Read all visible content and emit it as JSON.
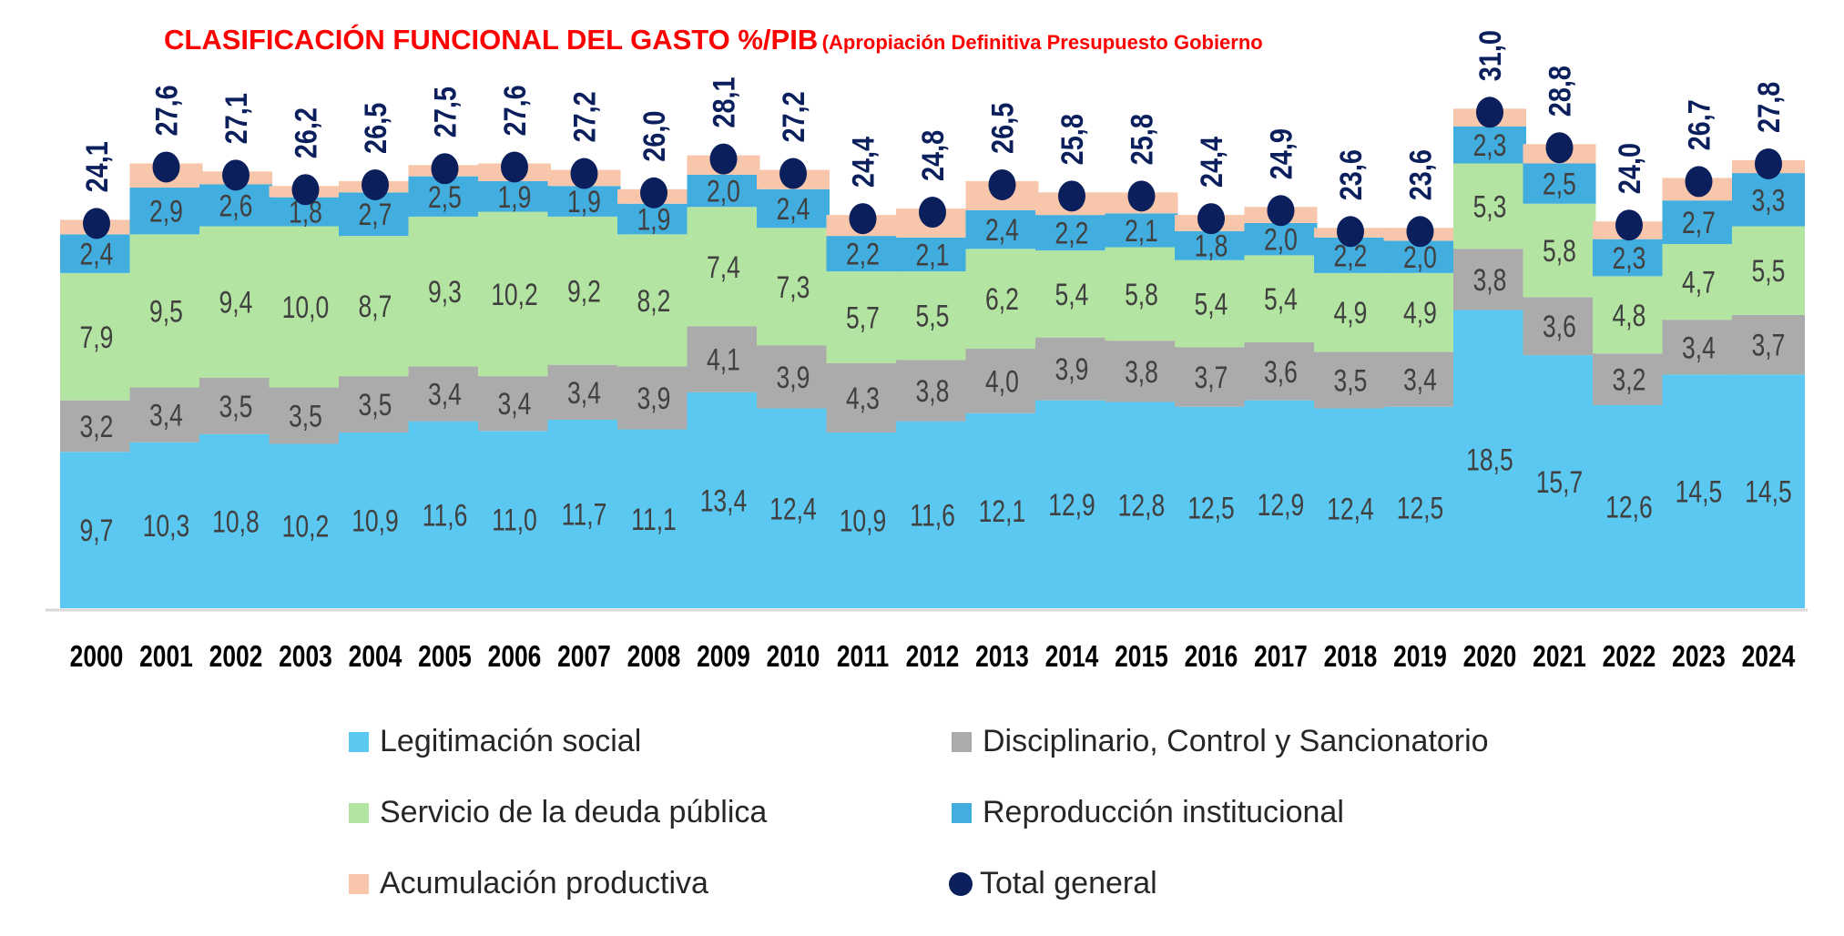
{
  "chart_data": {
    "type": "bar",
    "stacked": true,
    "title": "CLASIFICACIÓN FUNCIONAL DEL GASTO %/PIB",
    "subtitle": "(Apropiación Definitiva Presupuesto Gobierno",
    "categories": [
      "2000",
      "2001",
      "2002",
      "2003",
      "2004",
      "2005",
      "2006",
      "2007",
      "2008",
      "2009",
      "2010",
      "2011",
      "2012",
      "2013",
      "2014",
      "2015",
      "2016",
      "2017",
      "2018",
      "2019",
      "2020",
      "2021",
      "2022",
      "2023",
      "2024"
    ],
    "series": [
      {
        "name": "Legitimación social",
        "color": "#5BC8F1",
        "values": [
          9.7,
          10.3,
          10.8,
          10.2,
          10.9,
          11.6,
          11.0,
          11.7,
          11.1,
          13.4,
          12.4,
          10.9,
          11.6,
          12.1,
          12.9,
          12.8,
          12.5,
          12.9,
          12.4,
          12.5,
          18.5,
          15.7,
          12.6,
          14.5,
          14.5
        ],
        "labels": [
          "9,7",
          "10,3",
          "10,8",
          "10,2",
          "10,9",
          "11,6",
          "11,0",
          "11,7",
          "11,1",
          "13,4",
          "12,4",
          "10,9",
          "11,6",
          "12,1",
          "12,9",
          "12,8",
          "12,5",
          "12,9",
          "12,4",
          "12,5",
          "18,5",
          "15,7",
          "12,6",
          "14,5",
          "14,5"
        ]
      },
      {
        "name": "Disciplinario, Control y Sancionatorio",
        "color": "#ABABAB",
        "values": [
          3.2,
          3.4,
          3.5,
          3.5,
          3.5,
          3.4,
          3.4,
          3.4,
          3.9,
          4.1,
          3.9,
          4.3,
          3.8,
          4.0,
          3.9,
          3.8,
          3.7,
          3.6,
          3.5,
          3.4,
          3.8,
          3.6,
          3.2,
          3.4,
          3.7
        ],
        "labels": [
          "3,2",
          "3,4",
          "3,5",
          "3,5",
          "3,5",
          "3,4",
          "3,4",
          "3,4",
          "3,9",
          "4,1",
          "3,9",
          "4,3",
          "3,8",
          "4,0",
          "3,9",
          "3,8",
          "3,7",
          "3,6",
          "3,5",
          "3,4",
          "3,8",
          "3,6",
          "3,2",
          "3,4",
          "3,7"
        ]
      },
      {
        "name": "Servicio de la deuda pública",
        "color": "#B4E4A1",
        "values": [
          7.9,
          9.5,
          9.4,
          10.0,
          8.7,
          9.3,
          10.2,
          9.2,
          8.2,
          7.4,
          7.3,
          5.7,
          5.5,
          6.2,
          5.4,
          5.8,
          5.4,
          5.4,
          4.9,
          4.9,
          5.3,
          5.8,
          4.8,
          4.7,
          5.5
        ],
        "labels": [
          "7,9",
          "9,5",
          "9,4",
          "10,0",
          "8,7",
          "9,3",
          "10,2",
          "9,2",
          "8,2",
          "7,4",
          "7,3",
          "5,7",
          "5,5",
          "6,2",
          "5,4",
          "5,8",
          "5,4",
          "5,4",
          "4,9",
          "4,9",
          "5,3",
          "5,8",
          "4,8",
          "4,7",
          "5,5"
        ]
      },
      {
        "name": "Reproducción institucional",
        "color": "#42AEE0",
        "values": [
          2.4,
          2.9,
          2.6,
          1.8,
          2.7,
          2.5,
          1.9,
          1.9,
          1.9,
          2.0,
          2.4,
          2.2,
          2.1,
          2.4,
          2.2,
          2.1,
          1.8,
          2.0,
          2.2,
          2.0,
          2.3,
          2.5,
          2.3,
          2.7,
          3.3
        ],
        "labels": [
          "2,4",
          "2,9",
          "2,6",
          "1,8",
          "2,7",
          "2,5",
          "1,9",
          "1,9",
          "1,9",
          "2,0",
          "2,4",
          "2,2",
          "2,1",
          "2,4",
          "2,2",
          "2,1",
          "1,8",
          "2,0",
          "2,2",
          "2,0",
          "2,3",
          "2,5",
          "2,3",
          "2,7",
          "3,3"
        ]
      },
      {
        "name": "Acumulación productiva",
        "color": "#F7C6AB",
        "values": [
          0.9,
          1.5,
          0.8,
          0.7,
          0.7,
          0.7,
          1.1,
          1.0,
          0.9,
          1.2,
          1.2,
          1.3,
          1.8,
          1.8,
          1.4,
          1.3,
          1.0,
          1.0,
          0.6,
          0.8,
          1.1,
          1.2,
          1.1,
          1.4,
          0.8
        ]
      }
    ],
    "total": {
      "name": "Total general",
      "color": "#0B1F5C",
      "values": [
        24.1,
        27.6,
        27.1,
        26.2,
        26.5,
        27.5,
        27.6,
        27.2,
        26.0,
        28.1,
        27.2,
        24.4,
        24.8,
        26.5,
        25.8,
        25.8,
        24.4,
        24.9,
        23.6,
        23.6,
        31.0,
        28.8,
        24.0,
        26.7,
        27.8
      ],
      "labels": [
        "24,1",
        "27,6",
        "27,1",
        "26,2",
        "26,5",
        "27,5",
        "27,6",
        "27,2",
        "26,0",
        "28,1",
        "27,2",
        "24,4",
        "24,8",
        "26,5",
        "25,8",
        "25,8",
        "24,4",
        "24,9",
        "23,6",
        "23,6",
        "31,0",
        "28,8",
        "24,0",
        "26,7",
        "27,8"
      ]
    },
    "legend_position": "bottom",
    "grid": false
  }
}
